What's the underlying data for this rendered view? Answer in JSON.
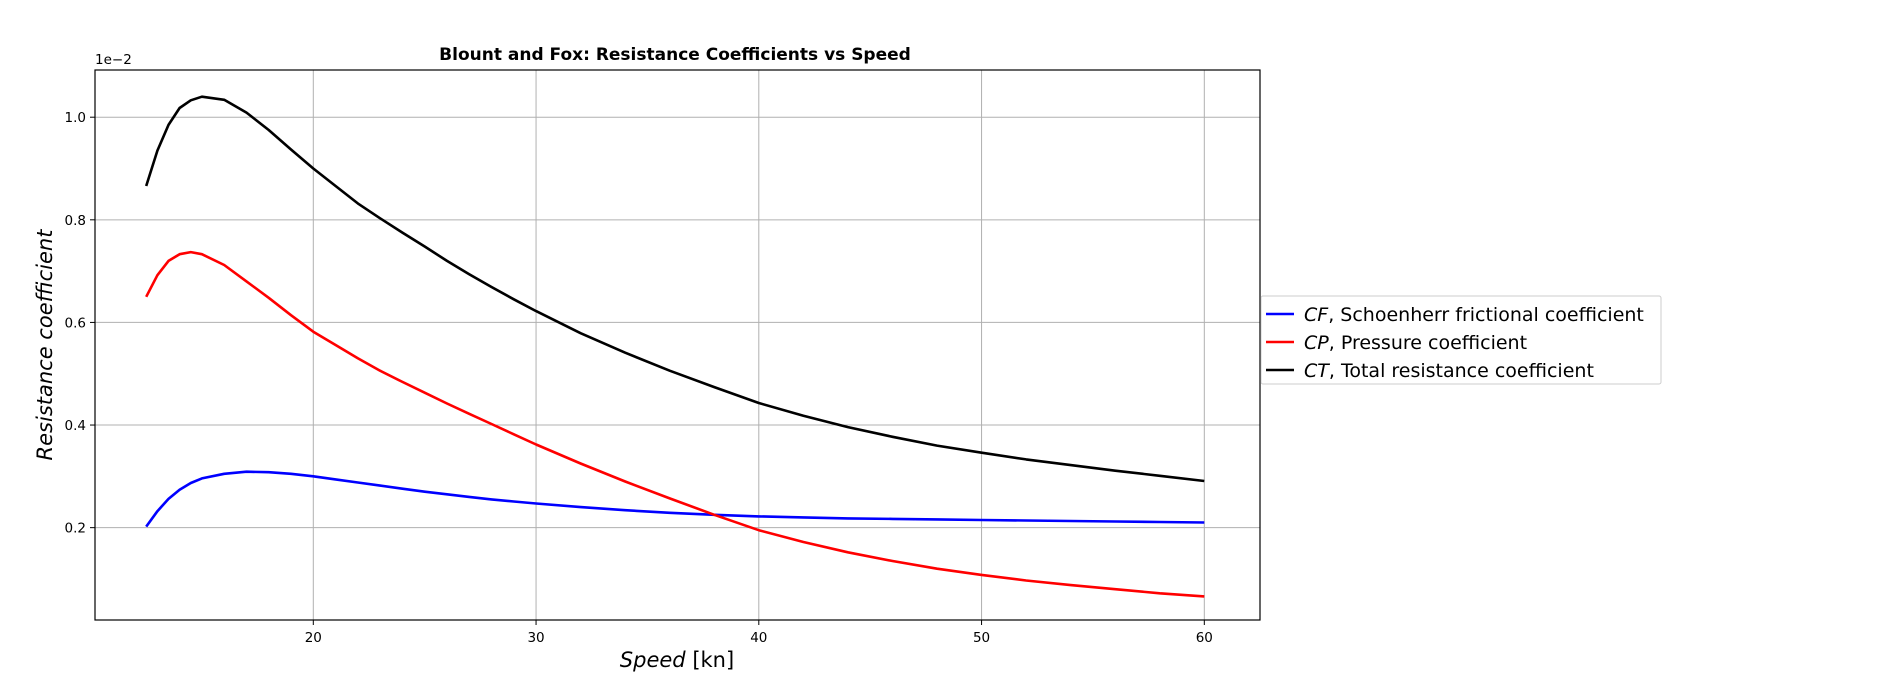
{
  "chart_data": {
    "type": "line",
    "title": "Blount and Fox: Resistance Coefficients vs Speed",
    "xlabel_italic": "Speed",
    "xlabel_unit": " [kn]",
    "ylabel": "Resistance coefficient",
    "y_multiplier_label": "1e−2",
    "xlim": [
      10.2,
      62.5
    ],
    "ylim": [
      0.02,
      1.092
    ],
    "x_ticks": [
      20,
      30,
      40,
      50,
      60
    ],
    "x_tick_labels": [
      "20",
      "30",
      "40",
      "50",
      "60"
    ],
    "y_ticks": [
      0.2,
      0.4,
      0.6,
      0.8,
      1.0
    ],
    "y_tick_labels": [
      "0.2",
      "0.4",
      "0.6",
      "0.8",
      "1.0"
    ],
    "grid": true,
    "legend_placement": "right, outside axes",
    "x": [
      12.5,
      13,
      13.5,
      14,
      14.5,
      15,
      16,
      17,
      18,
      19,
      20,
      21,
      22,
      23,
      24,
      25,
      26,
      27,
      28,
      29,
      30,
      32,
      34,
      36,
      38,
      40,
      42,
      44,
      46,
      48,
      50,
      52,
      54,
      56,
      58,
      60
    ],
    "series": [
      {
        "name": "Schoenherr frictional coefficient",
        "symbol": "CF",
        "color": "#0000ff",
        "values": [
          0.202,
          0.232,
          0.256,
          0.274,
          0.287,
          0.296,
          0.305,
          0.309,
          0.308,
          0.305,
          0.3,
          0.294,
          0.288,
          0.282,
          0.276,
          0.27,
          0.265,
          0.26,
          0.255,
          0.251,
          0.247,
          0.24,
          0.234,
          0.229,
          0.225,
          0.222,
          0.22,
          0.218,
          0.217,
          0.216,
          0.215,
          0.214,
          0.213,
          0.212,
          0.211,
          0.21
        ]
      },
      {
        "name": "Pressure coefficient",
        "symbol": "CP",
        "color": "#ff0000",
        "values": [
          0.65,
          0.692,
          0.72,
          0.733,
          0.737,
          0.733,
          0.712,
          0.68,
          0.648,
          0.614,
          0.582,
          0.556,
          0.53,
          0.506,
          0.484,
          0.463,
          0.442,
          0.422,
          0.402,
          0.382,
          0.362,
          0.325,
          0.29,
          0.257,
          0.225,
          0.195,
          0.172,
          0.152,
          0.135,
          0.12,
          0.108,
          0.097,
          0.088,
          0.08,
          0.072,
          0.066
        ]
      },
      {
        "name": "Total resistance coefficient",
        "symbol": "CT",
        "color": "#000000",
        "values": [
          0.866,
          0.935,
          0.985,
          1.018,
          1.033,
          1.04,
          1.034,
          1.009,
          0.975,
          0.937,
          0.9,
          0.866,
          0.832,
          0.803,
          0.775,
          0.748,
          0.72,
          0.694,
          0.669,
          0.645,
          0.622,
          0.579,
          0.541,
          0.506,
          0.474,
          0.443,
          0.418,
          0.396,
          0.377,
          0.36,
          0.346,
          0.333,
          0.322,
          0.311,
          0.301,
          0.291
        ]
      }
    ]
  }
}
